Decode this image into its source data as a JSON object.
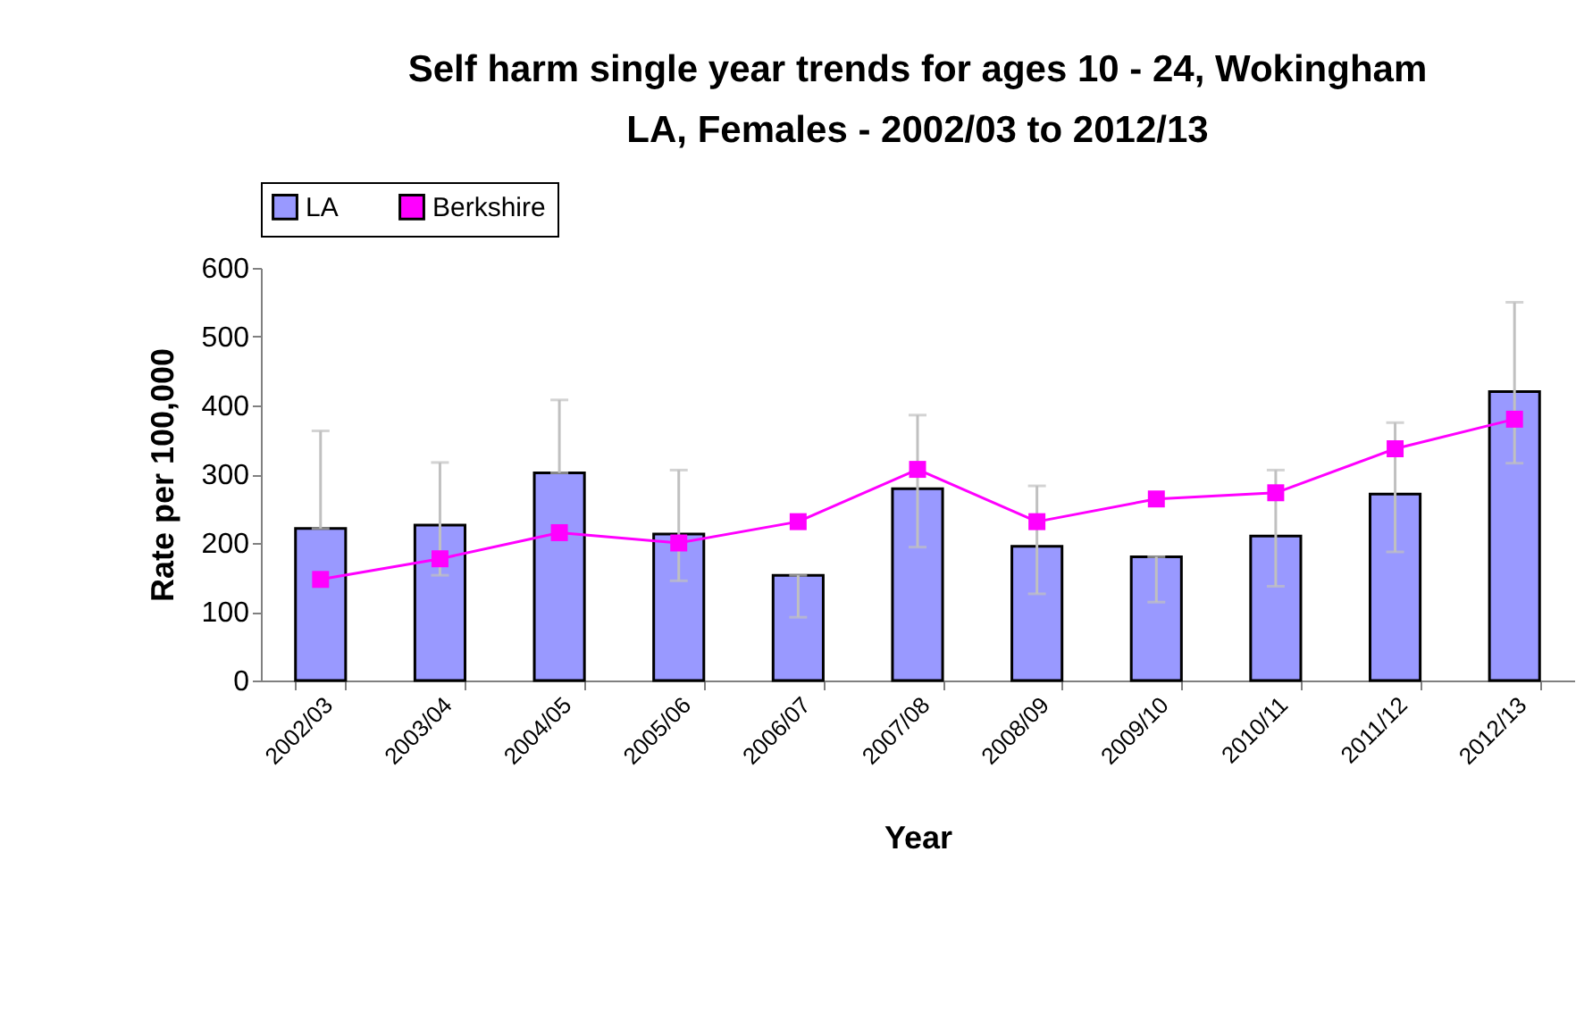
{
  "chart_data": {
    "type": "bar",
    "title": "Self harm single year trends for ages 10 - 24, Wokingham LA, Females - 2002/03 to 2012/13",
    "xlabel": "Year",
    "ylabel": "Rate per 100,000",
    "categories": [
      "2002/03",
      "2003/04",
      "2004/05",
      "2005/06",
      "2006/07",
      "2007/08",
      "2008/09",
      "2009/10",
      "2010/11",
      "2011/12",
      "2012/13"
    ],
    "series": [
      {
        "name": "LA",
        "color": "#9999ff",
        "values": [
          221,
          226,
          302,
          213,
          153,
          279,
          195,
          180,
          210,
          271,
          420
        ],
        "errors": [
          [
            221,
            363
          ],
          [
            153,
            317
          ],
          [
            302,
            408
          ],
          [
            145,
            306
          ],
          [
            92,
            153
          ],
          [
            194,
            386
          ],
          [
            126,
            283
          ],
          [
            114,
            180
          ],
          [
            137,
            306
          ],
          [
            187,
            375
          ],
          [
            316,
            550
          ]
        ]
      },
      {
        "name": "Berkshire",
        "type": "line",
        "color": "#ff00ff",
        "values": [
          147,
          177,
          215,
          200,
          231,
          307,
          231,
          264,
          273,
          337,
          380
        ],
        "marker": "square"
      }
    ],
    "ylim": [
      0,
      600
    ],
    "yticks": [
      0,
      100,
      200,
      300,
      400,
      500,
      600
    ],
    "grid": false,
    "legend": "top"
  }
}
